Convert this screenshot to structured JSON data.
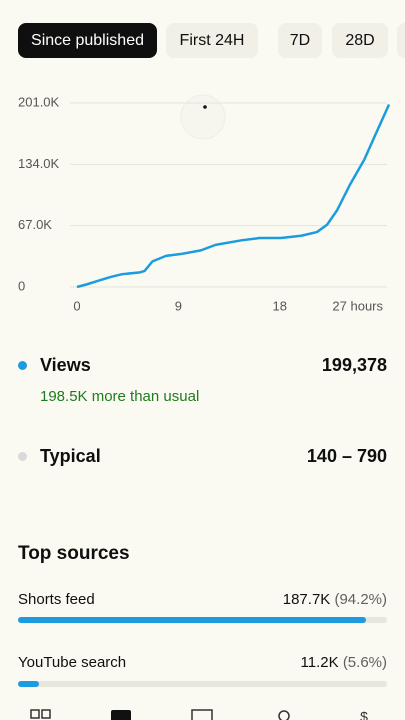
{
  "tabs": [
    "Since published",
    "First 24H",
    "7D",
    "28D"
  ],
  "chart_data": {
    "type": "line",
    "x": [
      0,
      0.9,
      1.8,
      3,
      4,
      5.6,
      6,
      6.7,
      7.9,
      9.2,
      11,
      12.3,
      14.6,
      16.2,
      18.1,
      19.9,
      21.3,
      22.2,
      23.1,
      24.2,
      25.5,
      26.7,
      27.7
    ],
    "series": [
      {
        "name": "Views",
        "color": "#1c9ce0",
        "values": [
          0,
          3000,
          6500,
          11000,
          14000,
          16000,
          17500,
          28000,
          34000,
          36000,
          40000,
          46000,
          51000,
          53500,
          53500,
          56000,
          60000,
          68000,
          84000,
          111000,
          139000,
          172000,
          199400
        ]
      }
    ],
    "xlim": [
      0,
      27.7
    ],
    "xticks": [
      0,
      9,
      18,
      {
        "value": 27,
        "label": "27 hours"
      }
    ],
    "ylim": [
      0,
      201000
    ],
    "yticks": [
      0,
      {
        "value": 67000,
        "label": "67.0K"
      },
      {
        "value": 134000,
        "label": "134.0K"
      },
      {
        "value": 201000,
        "label": "201.0K"
      }
    ],
    "grid": true
  },
  "stats": [
    {
      "name": "Views",
      "value": "199,378",
      "note": "198.5K more than usual",
      "color": "#1c9ce0"
    },
    {
      "name": "Typical",
      "value": "140 – 790",
      "color": "#d9d9d9"
    }
  ],
  "sources": {
    "title": "Top sources",
    "items": [
      {
        "name": "Shorts feed",
        "value": "187.7K",
        "percent": 94.2,
        "percent_label": "(94.2%)"
      },
      {
        "name": "YouTube search",
        "value": "11.2K",
        "percent": 5.6,
        "percent_label": "(5.6%)"
      }
    ]
  }
}
